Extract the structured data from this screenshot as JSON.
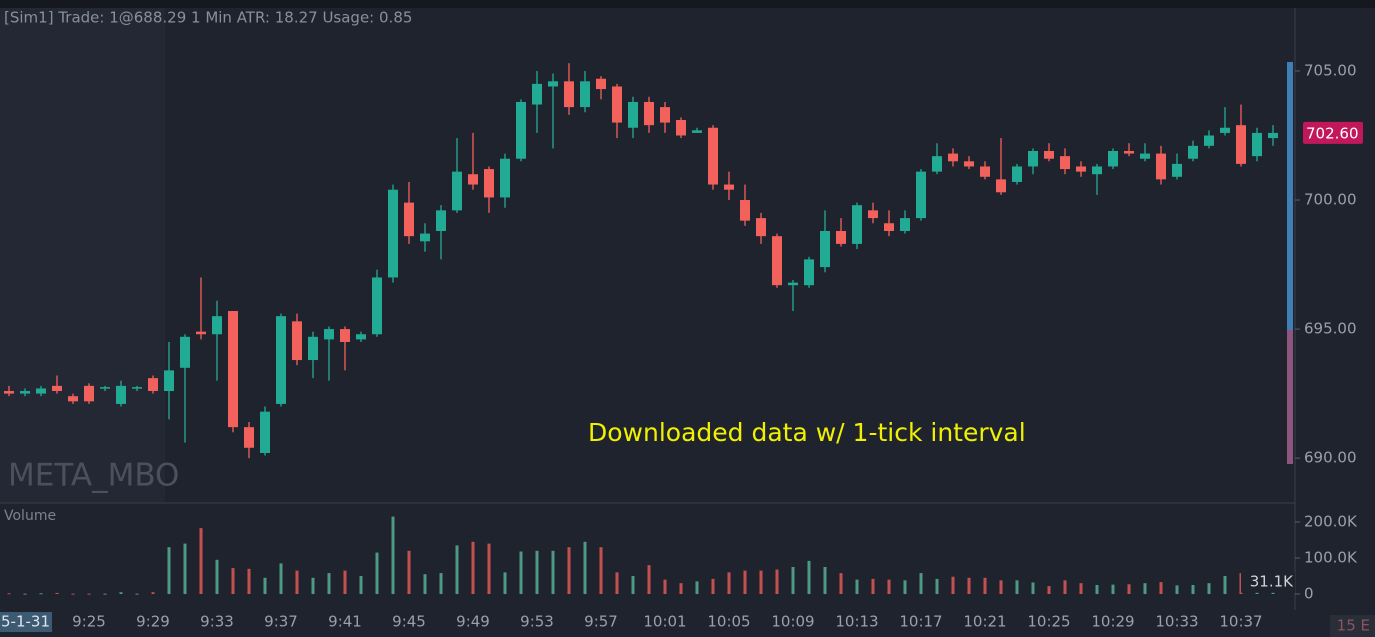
{
  "header": {
    "status": "[Sim1] Trade: 1@688.29 1 Min ATR: 18.27 Usage: 0.85",
    "date_stub": "5-1-31",
    "corner": "15 E"
  },
  "chart_data": [
    {
      "type": "candlestick",
      "symbol": "META_MBO",
      "annotation": "Downloaded data w/ 1-tick interval",
      "up_color": "#22ab94",
      "down_color": "#f2615b",
      "categories": [
        null,
        null,
        null,
        null,
        null,
        "9:25",
        null,
        null,
        null,
        "9:29",
        null,
        null,
        null,
        "9:33",
        null,
        null,
        null,
        "9:37",
        null,
        null,
        null,
        "9:41",
        null,
        null,
        null,
        "9:45",
        null,
        null,
        null,
        "9:49",
        null,
        null,
        null,
        "9:53",
        null,
        null,
        null,
        "9:57",
        null,
        null,
        null,
        "10:01",
        null,
        null,
        null,
        "10:05",
        null,
        null,
        null,
        "10:09",
        null,
        null,
        null,
        "10:13",
        null,
        null,
        null,
        "10:17",
        null,
        null,
        null,
        "10:21",
        null,
        null,
        null,
        "10:25",
        null,
        null,
        null,
        "10:29",
        null,
        null,
        null,
        "10:33",
        null,
        null,
        null,
        "10:37",
        null,
        null
      ],
      "open": [
        692.6,
        692.5,
        692.5,
        692.8,
        692.4,
        692.8,
        692.7,
        692.1,
        692.7,
        693.1,
        692.6,
        693.5,
        694.9,
        694.8,
        695.7,
        691.2,
        690.2,
        692.1,
        695.3,
        693.8,
        694.6,
        695.0,
        694.6,
        694.8,
        697.0,
        699.9,
        698.4,
        698.8,
        699.6,
        701.0,
        701.2,
        700.1,
        701.6,
        703.7,
        704.4,
        704.6,
        703.6,
        704.7,
        704.4,
        702.8,
        703.8,
        703.6,
        703.1,
        702.6,
        702.8,
        700.6,
        700.0,
        699.3,
        698.6,
        696.7,
        696.7,
        697.4,
        698.8,
        698.3,
        699.6,
        699.1,
        698.8,
        699.3,
        701.1,
        701.8,
        701.5,
        701.3,
        700.8,
        700.7,
        701.3,
        701.9,
        701.7,
        701.3,
        701.0,
        701.3,
        701.9,
        701.6,
        701.8,
        700.9,
        701.6,
        702.1,
        702.6,
        702.9,
        701.7,
        702.4
      ],
      "high": [
        692.8,
        692.7,
        692.8,
        693.2,
        692.5,
        692.9,
        692.8,
        693.0,
        692.8,
        693.2,
        694.5,
        694.8,
        697.0,
        696.1,
        695.7,
        691.4,
        692.0,
        695.6,
        695.6,
        694.9,
        695.1,
        695.1,
        694.9,
        697.3,
        700.6,
        700.7,
        699.1,
        699.8,
        702.4,
        702.6,
        701.3,
        701.8,
        703.9,
        705.0,
        704.9,
        705.3,
        705.0,
        704.8,
        704.5,
        704.0,
        704.0,
        703.8,
        703.2,
        702.8,
        702.9,
        701.1,
        700.6,
        699.5,
        698.7,
        696.9,
        697.8,
        699.6,
        699.3,
        699.9,
        699.9,
        699.6,
        699.6,
        701.2,
        702.2,
        702.0,
        701.7,
        701.5,
        702.4,
        701.4,
        702.0,
        702.2,
        702.0,
        701.5,
        701.4,
        702.0,
        702.2,
        702.2,
        702.1,
        701.8,
        702.3,
        702.7,
        703.6,
        703.7,
        702.8,
        702.9
      ],
      "low": [
        692.4,
        692.4,
        692.4,
        692.5,
        692.1,
        692.1,
        692.6,
        692.0,
        692.6,
        692.5,
        691.5,
        690.6,
        694.6,
        693.0,
        691.0,
        690.0,
        690.1,
        692.0,
        693.6,
        693.1,
        693.0,
        693.4,
        694.5,
        694.7,
        696.8,
        698.3,
        698.0,
        697.7,
        699.5,
        700.4,
        699.5,
        699.7,
        701.5,
        702.6,
        702.0,
        703.3,
        703.4,
        703.9,
        702.4,
        702.4,
        702.6,
        702.6,
        702.4,
        702.6,
        700.4,
        700.0,
        699.0,
        698.3,
        696.6,
        695.7,
        696.6,
        697.2,
        698.2,
        698.1,
        699.1,
        698.6,
        698.7,
        699.2,
        701.0,
        701.3,
        701.2,
        700.8,
        700.2,
        700.6,
        701.0,
        701.5,
        701.0,
        700.9,
        700.2,
        701.2,
        701.7,
        701.5,
        700.6,
        700.8,
        701.5,
        702.0,
        702.5,
        701.3,
        701.5,
        702.1
      ],
      "close": [
        692.5,
        692.6,
        692.7,
        692.6,
        692.2,
        692.2,
        692.75,
        692.8,
        692.75,
        692.6,
        693.4,
        694.7,
        694.8,
        695.5,
        691.2,
        690.4,
        691.8,
        695.5,
        693.8,
        694.7,
        695.0,
        694.5,
        694.8,
        697.0,
        700.4,
        698.6,
        698.7,
        699.6,
        701.1,
        700.6,
        700.1,
        701.6,
        703.8,
        704.5,
        704.6,
        703.6,
        704.6,
        704.3,
        703.0,
        703.8,
        702.9,
        703.0,
        702.5,
        702.7,
        700.6,
        700.4,
        699.2,
        698.6,
        696.7,
        696.8,
        697.7,
        698.8,
        698.3,
        699.8,
        699.3,
        698.8,
        699.3,
        701.1,
        701.7,
        701.5,
        701.3,
        700.9,
        700.3,
        701.3,
        701.9,
        701.6,
        701.2,
        701.1,
        701.3,
        701.9,
        701.8,
        701.8,
        700.8,
        701.4,
        702.1,
        702.5,
        702.8,
        701.4,
        702.6,
        702.6
      ],
      "ylim": [
        688.3,
        707.44
      ],
      "yticks": [
        {
          "value": 690,
          "label": "690.00"
        },
        {
          "value": 695,
          "label": "695.00"
        },
        {
          "value": 700,
          "label": "700.00"
        },
        {
          "value": 705,
          "label": "705.00"
        }
      ],
      "last_price": {
        "value": 702.6,
        "label": "702.60"
      }
    },
    {
      "type": "bar",
      "title": "Volume",
      "up_color": "#4e9a85",
      "down_color": "#c4514f",
      "values": [
        2000,
        1000,
        2000,
        3000,
        1000,
        1000,
        1000,
        5000,
        1000,
        5000,
        130000,
        140000,
        183000,
        95000,
        72000,
        70000,
        45000,
        85000,
        65000,
        45000,
        58000,
        65000,
        50000,
        115000,
        215000,
        120000,
        55000,
        58000,
        135000,
        145000,
        140000,
        60000,
        118000,
        120000,
        120000,
        130000,
        145000,
        130000,
        60000,
        50000,
        80000,
        40000,
        30000,
        35000,
        42000,
        60000,
        65000,
        65000,
        68000,
        75000,
        92000,
        75000,
        58000,
        40000,
        42000,
        40000,
        38000,
        58000,
        42000,
        48000,
        45000,
        45000,
        38000,
        38000,
        32000,
        22000,
        38000,
        30000,
        25000,
        26000,
        27000,
        30000,
        33000,
        24000,
        25000,
        30000,
        50000,
        58000,
        27000,
        31100
      ],
      "value_labels": [
        null,
        null,
        null,
        null,
        null,
        null,
        null,
        null,
        null,
        null,
        null,
        null,
        null,
        null,
        null,
        null,
        null,
        null,
        null,
        null,
        null,
        null,
        null,
        null,
        null,
        null,
        null,
        null,
        null,
        null,
        null,
        null,
        null,
        null,
        null,
        null,
        null,
        null,
        null,
        null,
        null,
        null,
        null,
        null,
        null,
        null,
        null,
        null,
        null,
        null,
        null,
        null,
        null,
        null,
        null,
        null,
        null,
        null,
        null,
        null,
        null,
        null,
        null,
        null,
        null,
        null,
        null,
        null,
        null,
        null,
        null,
        null,
        null,
        null,
        null,
        null,
        null,
        null,
        null,
        "31.1K"
      ],
      "ylim": [
        0,
        250000
      ],
      "yticks": [
        0,
        {
          "value": 100000,
          "label": "100.0K"
        },
        {
          "value": 200000,
          "label": "200.0K"
        }
      ]
    }
  ]
}
